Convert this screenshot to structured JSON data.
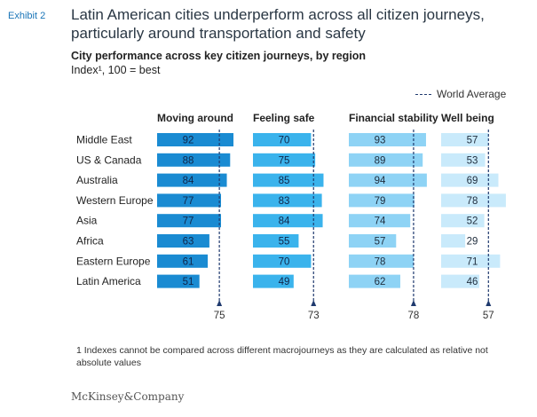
{
  "exhibit_label": "Exhibit 2",
  "title": "Latin American cities underperform across all citizen journeys, particularly around transportation and safety",
  "subtitle": "City performance across key citizen journeys, by region",
  "index_note": "Index¹, 100 = best",
  "legend": {
    "label": "World Average",
    "style": "dashed",
    "color": "#1f3a6e"
  },
  "footnote": "1 Indexes cannot be compared across different macrojourneys as they are calculated as relative not absolute values",
  "brand": "McKinsey&Company",
  "chart_data": {
    "type": "bar",
    "orientation": "horizontal",
    "categories": [
      "Middle East",
      "US & Canada",
      "Australia",
      "Western Europe",
      "Asia",
      "Africa",
      "Eastern Europe",
      "Latin America"
    ],
    "series": [
      {
        "name": "Moving around",
        "values": [
          92,
          88,
          84,
          77,
          77,
          63,
          61,
          51
        ],
        "world_average": 75,
        "color": "#1a8bd2"
      },
      {
        "name": "Feeling safe",
        "values": [
          70,
          75,
          85,
          83,
          84,
          55,
          70,
          49
        ],
        "world_average": 73,
        "color": "#3ab3ec"
      },
      {
        "name": "Financial stability",
        "values": [
          93,
          89,
          94,
          79,
          74,
          57,
          78,
          62
        ],
        "world_average": 78,
        "color": "#8ed3f5"
      },
      {
        "name": "Well being",
        "values": [
          57,
          53,
          69,
          78,
          52,
          29,
          71,
          46
        ],
        "world_average": 57,
        "color": "#c9eafb"
      }
    ],
    "xlim": [
      0,
      100
    ],
    "grid": false,
    "legend_position": "top-right"
  }
}
